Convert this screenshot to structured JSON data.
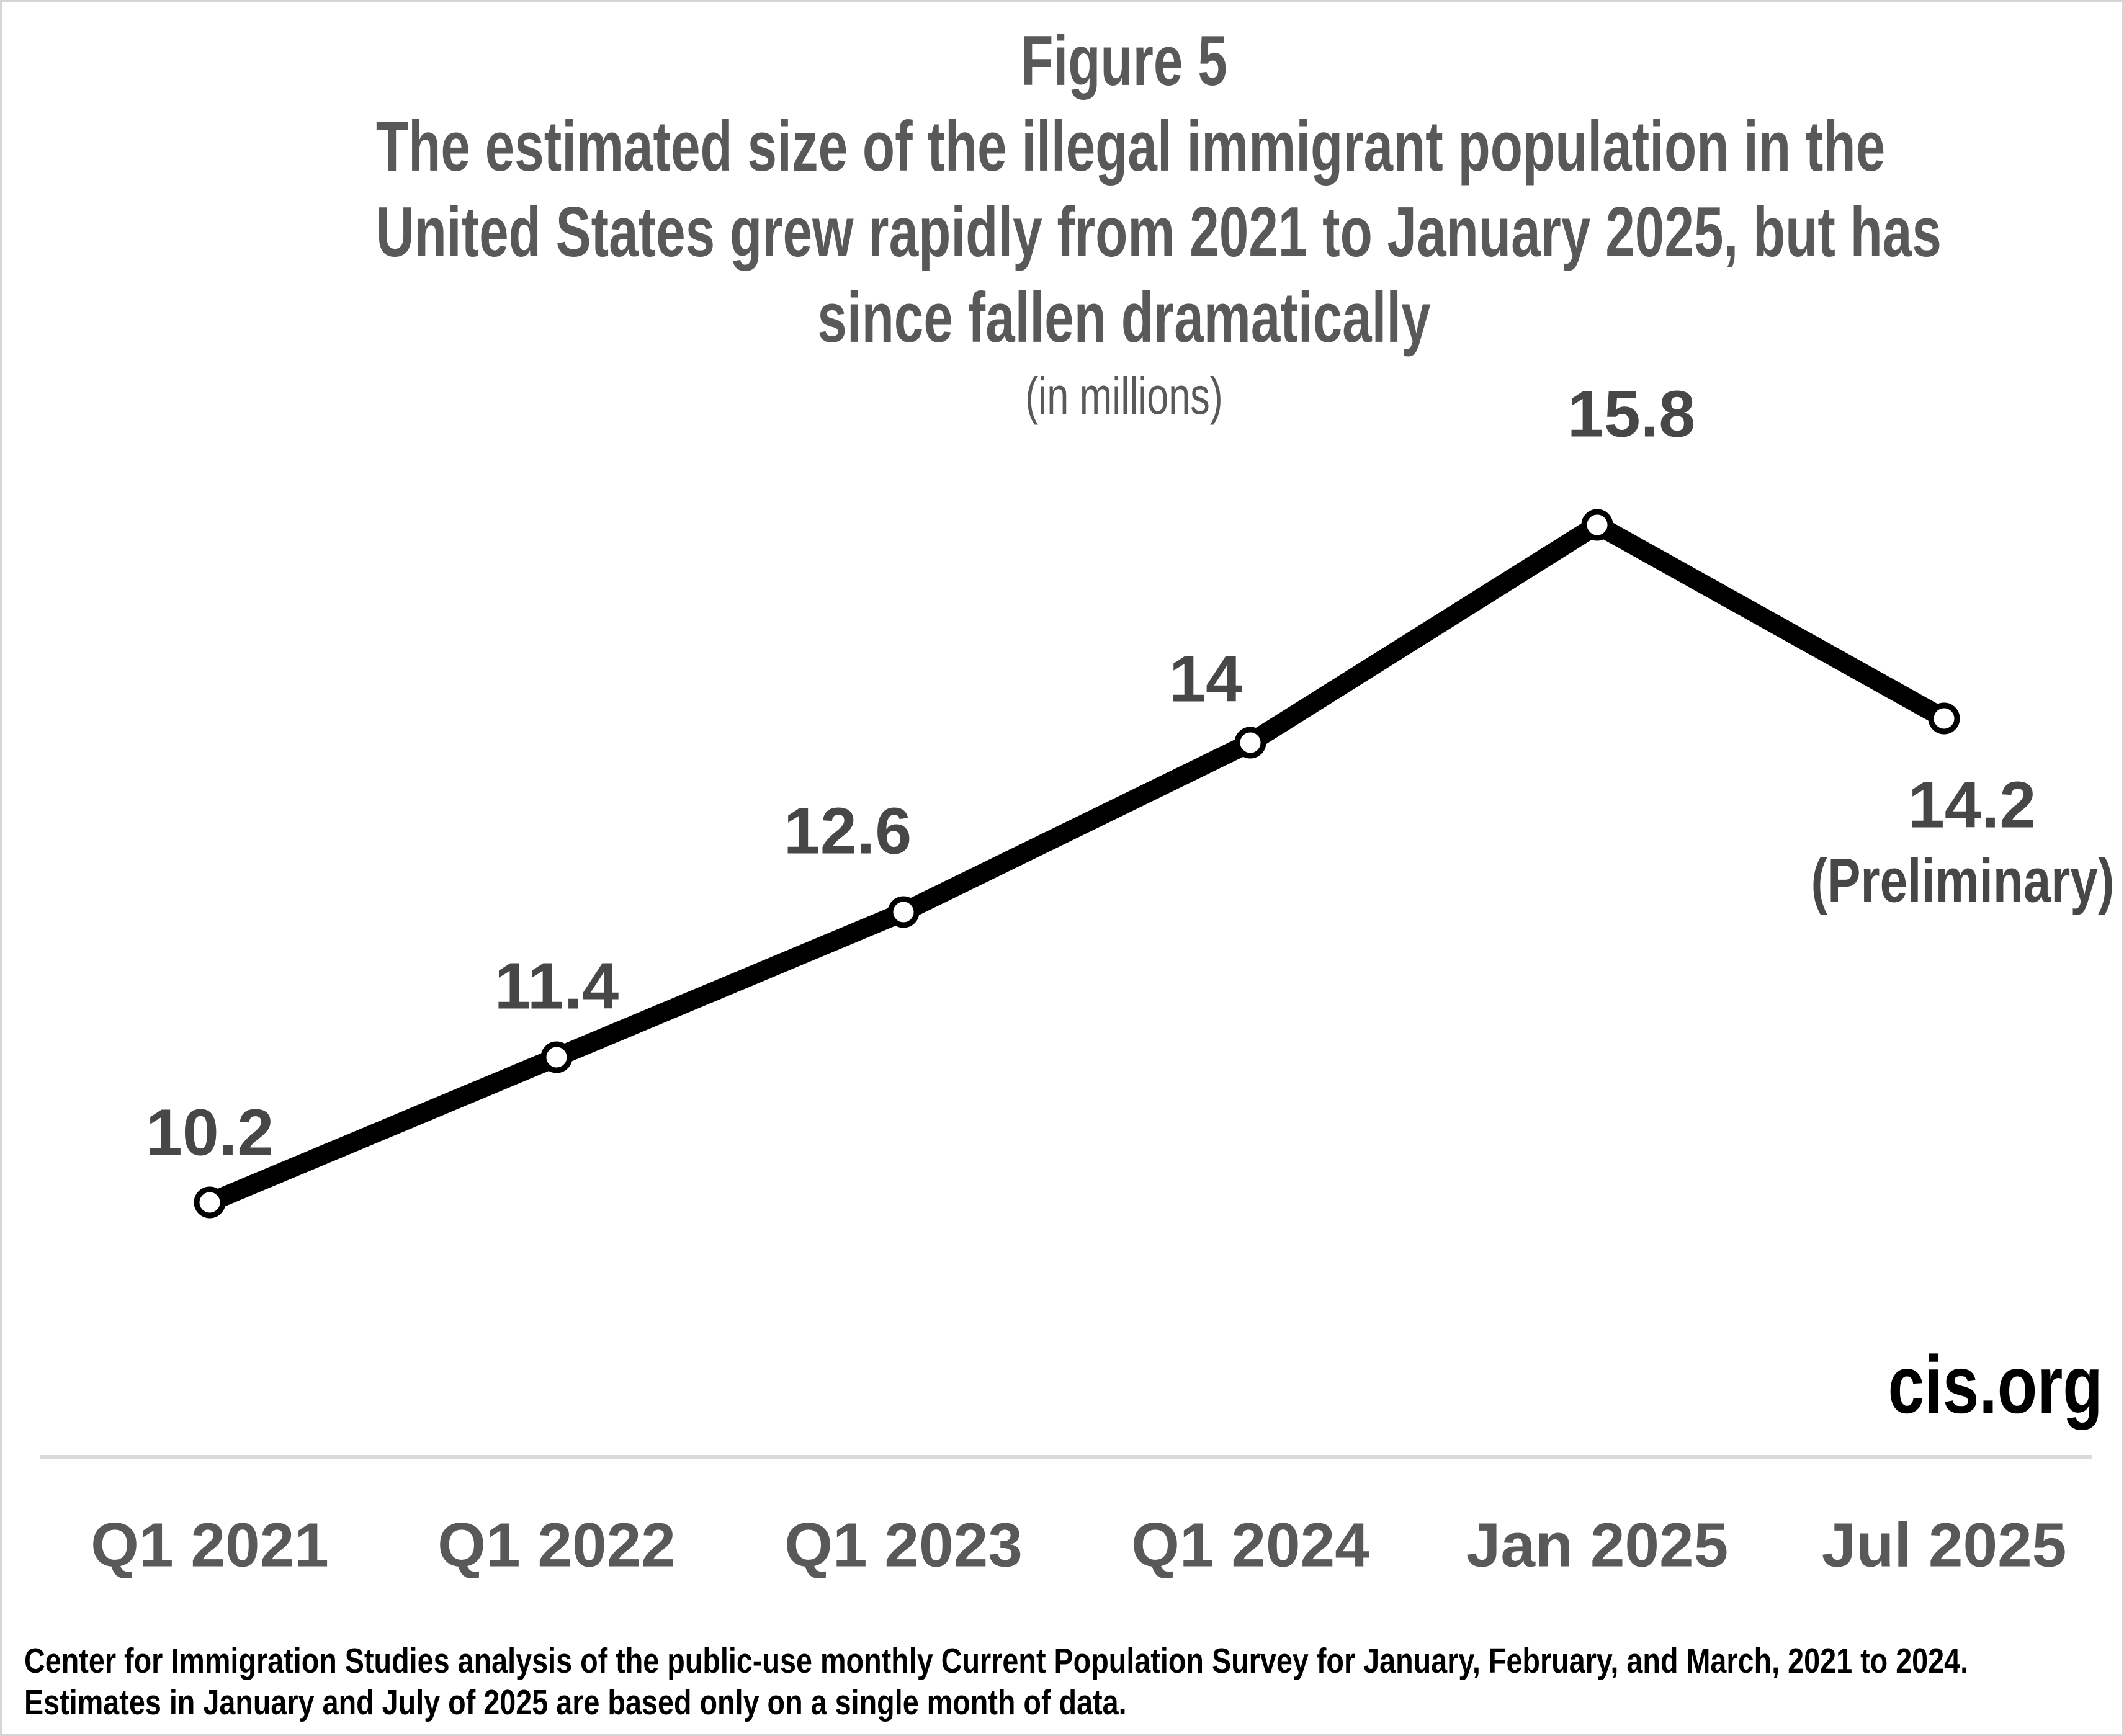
{
  "chart_data": {
    "type": "line",
    "title": "The estimated size of the illegal immigrant population in the United States grew rapidly from 2021 to January 2025, but has since fallen dramatically",
    "figure_label": "Figure 5",
    "title_lines": [
      "The estimated size of the illegal immigrant population in the",
      "United States grew rapidly from 2021 to January 2025, but has",
      "since fallen dramatically"
    ],
    "subtitle": "(in millions)",
    "categories": [
      "Q1 2021",
      "Q1 2022",
      "Q1 2023",
      "Q1 2024",
      "Jan 2025",
      "Jul 2025"
    ],
    "values": [
      10.2,
      11.4,
      12.6,
      14,
      15.8,
      14.2
    ],
    "value_labels": [
      "10.2",
      "11.4",
      "12.6",
      "14",
      "15.8",
      "14.2"
    ],
    "last_point_annotation": "(Preliminary)",
    "xlabel": "",
    "ylabel": "",
    "ylim": [
      8,
      17
    ],
    "grid": "off",
    "legend": "none",
    "line_color": "#000000",
    "marker_fill": "#ffffff",
    "marker_stroke": "#000000"
  },
  "branding": {
    "site_label": "cis.org"
  },
  "footer": {
    "line1": "Center for Immigration Studies analysis of the public-use monthly Current Population Survey for January, February, and March, 2021 to 2024.",
    "line2": "Estimates in January and July of 2025 are based only on a single month of data."
  },
  "colors": {
    "title_gray": "#595959",
    "data_label_gray": "#474747",
    "axis_label_gray": "#595959",
    "line_black": "#000000",
    "baseline_gray": "#d9d9d9",
    "page_border_gray": "#d5d5d5"
  }
}
